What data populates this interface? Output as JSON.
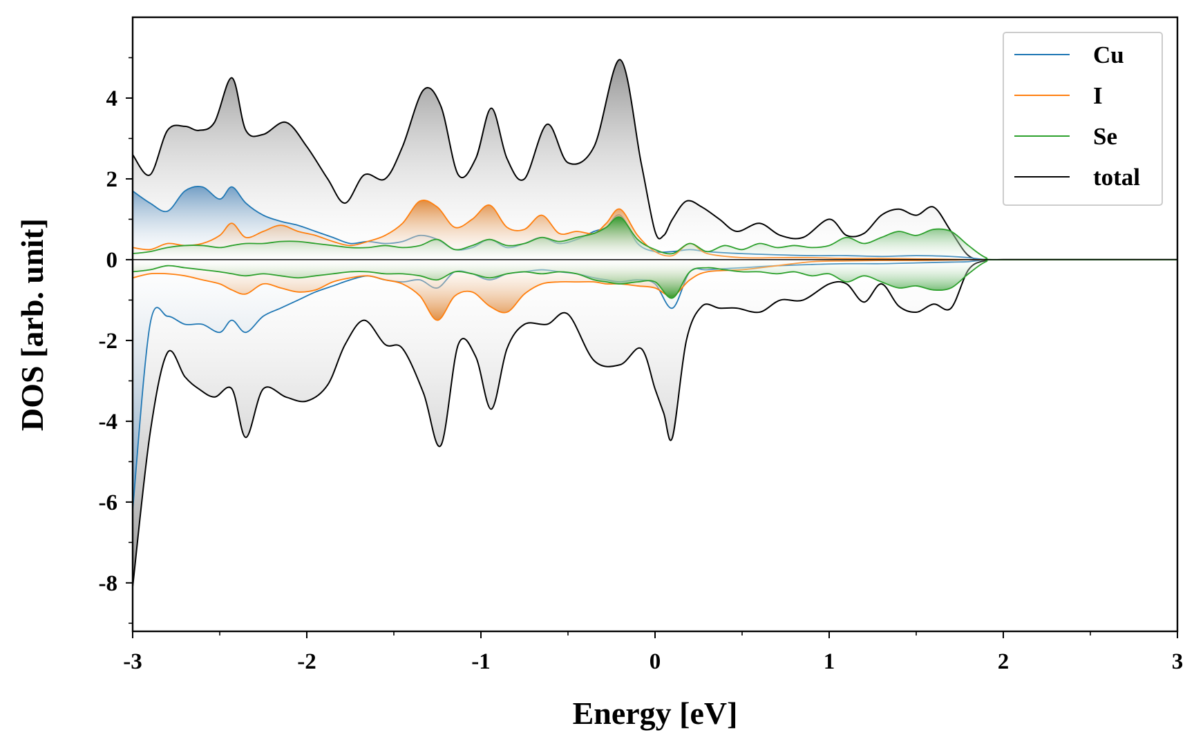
{
  "chart_data": {
    "type": "area",
    "title": "",
    "xlabel": "Energy [eV]",
    "ylabel": "DOS [arb. unit]",
    "xlim": [
      -3,
      3
    ],
    "ylim": [
      -9.2,
      6.0
    ],
    "xticks": [
      -3,
      -2,
      -1,
      0,
      1,
      2,
      3
    ],
    "xtick_labels": [
      "-3",
      "-2",
      "-1",
      "0",
      "1",
      "2",
      "3"
    ],
    "yticks": [
      -8,
      -6,
      -4,
      -2,
      0,
      2,
      4
    ],
    "ytick_labels": [
      "-8",
      "-6",
      "-4",
      "-2",
      "0",
      "2",
      "4"
    ],
    "legend_position": "top-right",
    "series": [
      {
        "name": "Cu",
        "color": "#1f77b4",
        "fill_color": "#6f9cc4",
        "x": [
          -3.0,
          -2.9,
          -2.8,
          -2.7,
          -2.6,
          -2.5,
          -2.43,
          -2.35,
          -2.25,
          -2.15,
          -2.05,
          -1.95,
          -1.85,
          -1.75,
          -1.65,
          -1.55,
          -1.45,
          -1.35,
          -1.25,
          -1.15,
          -1.05,
          -0.95,
          -0.85,
          -0.75,
          -0.65,
          -0.55,
          -0.45,
          -0.35,
          -0.28,
          -0.2,
          -0.1,
          0.0,
          0.1,
          0.2,
          0.3,
          0.5,
          0.7,
          0.9,
          1.1,
          1.3,
          1.5,
          1.7,
          1.8,
          1.9,
          2.0,
          3.0
        ],
        "up": [
          1.7,
          1.4,
          1.2,
          1.7,
          1.8,
          1.5,
          1.8,
          1.4,
          1.1,
          0.95,
          0.85,
          0.7,
          0.55,
          0.4,
          0.45,
          0.4,
          0.45,
          0.6,
          0.5,
          0.25,
          0.3,
          0.5,
          0.3,
          0.4,
          0.55,
          0.4,
          0.5,
          0.7,
          0.8,
          1.1,
          0.4,
          0.2,
          0.2,
          0.25,
          0.2,
          0.15,
          0.12,
          0.1,
          0.1,
          0.08,
          0.1,
          0.08,
          0.05,
          0.0,
          0.0,
          0.0
        ],
        "down": [
          -6.2,
          -1.6,
          -1.4,
          -1.6,
          -1.6,
          -1.8,
          -1.5,
          -1.8,
          -1.4,
          -1.2,
          -1.0,
          -0.8,
          -0.65,
          -0.5,
          -0.4,
          -0.5,
          -0.55,
          -0.5,
          -0.7,
          -0.3,
          -0.35,
          -0.5,
          -0.35,
          -0.3,
          -0.25,
          -0.3,
          -0.35,
          -0.45,
          -0.5,
          -0.55,
          -0.5,
          -0.6,
          -1.2,
          -0.3,
          -0.25,
          -0.2,
          -0.15,
          -0.12,
          -0.1,
          -0.1,
          -0.08,
          -0.06,
          -0.05,
          0.0,
          0.0,
          0.0
        ]
      },
      {
        "name": "I",
        "color": "#ff7f0e",
        "fill_color": "#e08a3c",
        "x": [
          -3.0,
          -2.9,
          -2.8,
          -2.7,
          -2.6,
          -2.5,
          -2.43,
          -2.35,
          -2.25,
          -2.15,
          -2.05,
          -1.95,
          -1.85,
          -1.75,
          -1.65,
          -1.55,
          -1.45,
          -1.35,
          -1.25,
          -1.15,
          -1.05,
          -0.95,
          -0.85,
          -0.75,
          -0.65,
          -0.55,
          -0.45,
          -0.35,
          -0.28,
          -0.2,
          -0.1,
          0.0,
          0.1,
          0.2,
          0.3,
          0.5,
          0.7,
          0.9,
          1.1,
          1.3,
          1.5,
          1.7,
          1.8,
          1.9,
          2.0,
          3.0
        ],
        "up": [
          0.3,
          0.25,
          0.4,
          0.35,
          0.4,
          0.6,
          0.9,
          0.55,
          0.7,
          0.85,
          0.7,
          0.6,
          0.45,
          0.35,
          0.45,
          0.6,
          0.9,
          1.45,
          1.3,
          0.8,
          1.0,
          1.35,
          0.8,
          0.75,
          1.1,
          0.65,
          0.7,
          0.65,
          0.9,
          1.25,
          0.6,
          0.2,
          0.1,
          0.4,
          0.15,
          0.05,
          0.05,
          0.05,
          0.03,
          0.03,
          0.02,
          0.01,
          0.0,
          0.0,
          0.0,
          0.0
        ],
        "down": [
          -0.45,
          -0.35,
          -0.35,
          -0.4,
          -0.5,
          -0.6,
          -0.75,
          -0.85,
          -0.6,
          -0.7,
          -0.8,
          -0.75,
          -0.55,
          -0.45,
          -0.4,
          -0.5,
          -0.6,
          -0.9,
          -1.5,
          -0.9,
          -0.8,
          -1.15,
          -1.3,
          -0.85,
          -0.6,
          -0.55,
          -0.55,
          -0.55,
          -0.6,
          -0.6,
          -0.65,
          -0.7,
          -0.9,
          -0.5,
          -0.3,
          -0.25,
          -0.15,
          -0.05,
          -0.03,
          -0.02,
          -0.02,
          -0.01,
          0.0,
          0.0,
          0.0,
          0.0
        ]
      },
      {
        "name": "Se",
        "color": "#2ca02c",
        "fill_color": "#2e9a2e",
        "x": [
          -3.0,
          -2.9,
          -2.8,
          -2.7,
          -2.6,
          -2.5,
          -2.43,
          -2.35,
          -2.25,
          -2.15,
          -2.05,
          -1.95,
          -1.85,
          -1.75,
          -1.65,
          -1.55,
          -1.45,
          -1.35,
          -1.25,
          -1.15,
          -1.05,
          -0.95,
          -0.85,
          -0.75,
          -0.65,
          -0.55,
          -0.45,
          -0.35,
          -0.28,
          -0.2,
          -0.1,
          0.0,
          0.1,
          0.2,
          0.3,
          0.4,
          0.5,
          0.6,
          0.7,
          0.8,
          0.9,
          1.0,
          1.1,
          1.2,
          1.3,
          1.4,
          1.5,
          1.6,
          1.7,
          1.8,
          1.9,
          2.0,
          3.0
        ],
        "up": [
          0.15,
          0.2,
          0.3,
          0.35,
          0.35,
          0.3,
          0.35,
          0.4,
          0.4,
          0.45,
          0.45,
          0.4,
          0.35,
          0.3,
          0.3,
          0.35,
          0.3,
          0.35,
          0.5,
          0.25,
          0.35,
          0.5,
          0.35,
          0.4,
          0.55,
          0.45,
          0.55,
          0.65,
          0.8,
          1.05,
          0.5,
          0.25,
          0.15,
          0.4,
          0.2,
          0.35,
          0.25,
          0.4,
          0.3,
          0.35,
          0.3,
          0.35,
          0.55,
          0.4,
          0.55,
          0.7,
          0.6,
          0.75,
          0.7,
          0.35,
          0.05,
          0.0,
          0.0
        ],
        "down": [
          -0.3,
          -0.25,
          -0.15,
          -0.2,
          -0.25,
          -0.3,
          -0.35,
          -0.4,
          -0.35,
          -0.4,
          -0.45,
          -0.4,
          -0.35,
          -0.3,
          -0.3,
          -0.35,
          -0.35,
          -0.4,
          -0.5,
          -0.3,
          -0.35,
          -0.45,
          -0.35,
          -0.3,
          -0.35,
          -0.3,
          -0.35,
          -0.5,
          -0.55,
          -0.6,
          -0.55,
          -0.55,
          -0.95,
          -0.3,
          -0.2,
          -0.25,
          -0.3,
          -0.3,
          -0.35,
          -0.3,
          -0.4,
          -0.35,
          -0.55,
          -0.4,
          -0.55,
          -0.7,
          -0.65,
          -0.75,
          -0.7,
          -0.35,
          -0.05,
          0.0,
          0.0
        ]
      },
      {
        "name": "total",
        "color": "#000000",
        "fill_color": "#8c8c8c",
        "x": [
          -3.0,
          -2.9,
          -2.8,
          -2.7,
          -2.62,
          -2.53,
          -2.43,
          -2.35,
          -2.25,
          -2.12,
          -2.0,
          -1.88,
          -1.78,
          -1.67,
          -1.55,
          -1.45,
          -1.33,
          -1.23,
          -1.13,
          -1.03,
          -0.94,
          -0.85,
          -0.75,
          -0.62,
          -0.5,
          -0.35,
          -0.2,
          -0.08,
          0.0,
          0.05,
          0.1,
          0.18,
          0.27,
          0.37,
          0.47,
          0.6,
          0.72,
          0.85,
          1.0,
          1.1,
          1.2,
          1.3,
          1.4,
          1.5,
          1.6,
          1.7,
          1.8,
          1.9,
          2.0,
          3.0
        ],
        "up": [
          2.6,
          2.1,
          3.2,
          3.3,
          3.2,
          3.4,
          4.5,
          3.2,
          3.1,
          3.4,
          2.8,
          2.0,
          1.4,
          2.1,
          2.0,
          2.8,
          4.2,
          3.8,
          2.1,
          2.5,
          3.75,
          2.5,
          2.0,
          3.35,
          2.4,
          2.8,
          4.95,
          2.4,
          0.7,
          0.6,
          1.0,
          1.45,
          1.3,
          1.0,
          0.7,
          0.9,
          0.6,
          0.55,
          1.0,
          0.6,
          0.65,
          1.1,
          1.25,
          1.1,
          1.3,
          0.7,
          0.1,
          0.0,
          0.0,
          0.0
        ],
        "down": [
          -8.1,
          -4.3,
          -2.3,
          -2.9,
          -3.2,
          -3.4,
          -3.2,
          -4.4,
          -3.2,
          -3.4,
          -3.5,
          -3.1,
          -2.1,
          -1.5,
          -2.1,
          -2.2,
          -3.3,
          -4.6,
          -2.1,
          -2.4,
          -3.7,
          -2.2,
          -1.6,
          -1.6,
          -1.35,
          -2.5,
          -2.6,
          -2.2,
          -3.2,
          -3.8,
          -4.4,
          -2.0,
          -1.15,
          -1.2,
          -1.2,
          -1.3,
          -1.0,
          -1.0,
          -0.6,
          -0.6,
          -1.05,
          -0.6,
          -1.15,
          -1.3,
          -1.1,
          -1.2,
          -0.25,
          -0.02,
          0.0,
          0.0
        ]
      }
    ]
  }
}
